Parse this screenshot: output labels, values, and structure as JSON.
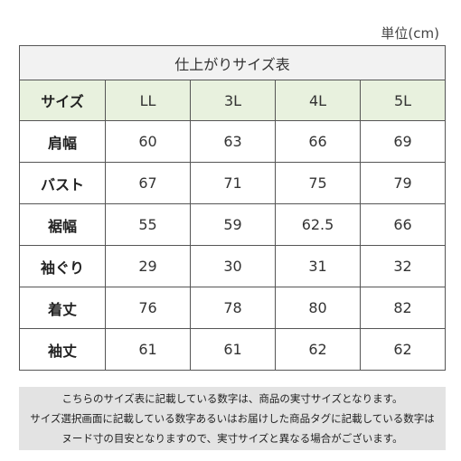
{
  "unit_label": "単位(cm)",
  "table": {
    "title": "仕上がりサイズ表",
    "corner_label": "サイズ",
    "sizes": [
      "LL",
      "3L",
      "4L",
      "5L"
    ],
    "rows": [
      {
        "label": "肩幅",
        "values": [
          "60",
          "63",
          "66",
          "69"
        ]
      },
      {
        "label": "バスト",
        "values": [
          "67",
          "71",
          "75",
          "79"
        ]
      },
      {
        "label": "裾幅",
        "values": [
          "55",
          "59",
          "62.5",
          "66"
        ]
      },
      {
        "label": "袖ぐり",
        "values": [
          "29",
          "30",
          "31",
          "32"
        ]
      },
      {
        "label": "着丈",
        "values": [
          "76",
          "78",
          "80",
          "82"
        ]
      },
      {
        "label": "袖丈",
        "values": [
          "61",
          "61",
          "62",
          "62"
        ]
      }
    ]
  },
  "note": {
    "lines": [
      "こちらのサイズ表に記載している数字は、商品の実寸サイズとなります。",
      "サイズ選択画面に記載している数字あるいはお届けした商品タグに記載している数字は",
      "ヌード寸の目安となりますので、実寸サイズと異なる場合がございます。"
    ]
  },
  "colors": {
    "header_bg": "#e8f1de",
    "title_bg": "#f2f2f2",
    "note_bg": "#e3e3e3",
    "border": "#555555"
  }
}
